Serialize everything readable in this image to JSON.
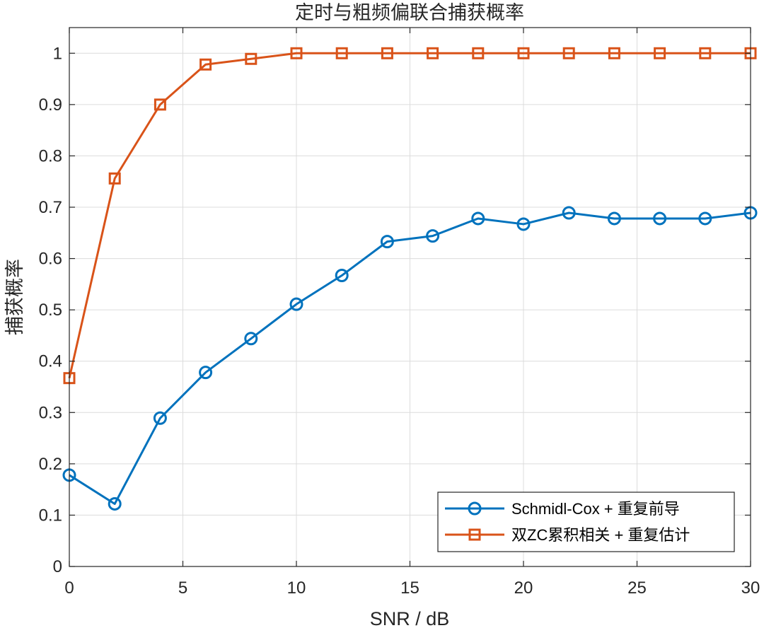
{
  "chart_data": {
    "type": "line",
    "title": "定时与粗频偏联合捕获概率",
    "xlabel": "SNR / dB",
    "ylabel": "捕获概率",
    "xlim": [
      0,
      30
    ],
    "ylim": [
      0,
      1.05
    ],
    "xticks": [
      0,
      5,
      10,
      15,
      20,
      25,
      30
    ],
    "yticks": [
      0,
      0.1,
      0.2,
      0.3,
      0.4,
      0.5,
      0.6,
      0.7,
      0.8,
      0.9,
      1
    ],
    "xtick_labels": [
      "0",
      "5",
      "10",
      "15",
      "20",
      "25",
      "30"
    ],
    "ytick_labels": [
      "0",
      "0.1",
      "0.2",
      "0.3",
      "0.4",
      "0.5",
      "0.6",
      "0.7",
      "0.8",
      "0.9",
      "1"
    ],
    "grid": true,
    "legend_position": "bottom-right",
    "x": [
      0,
      2,
      4,
      6,
      8,
      10,
      12,
      14,
      16,
      18,
      20,
      22,
      24,
      26,
      28,
      30
    ],
    "series": [
      {
        "name": "Schmidl-Cox + 重复前导",
        "color": "#0072BD",
        "marker": "circle",
        "values": [
          0.178,
          0.122,
          0.289,
          0.378,
          0.444,
          0.511,
          0.567,
          0.633,
          0.644,
          0.678,
          0.667,
          0.689,
          0.678,
          0.678,
          0.678,
          0.689
        ]
      },
      {
        "name": "双ZC累积相关 + 重复估计",
        "color": "#D95319",
        "marker": "square",
        "values": [
          0.367,
          0.756,
          0.9,
          0.978,
          0.989,
          1,
          1,
          1,
          1,
          1,
          1,
          1,
          1,
          1,
          1,
          1
        ]
      }
    ]
  }
}
